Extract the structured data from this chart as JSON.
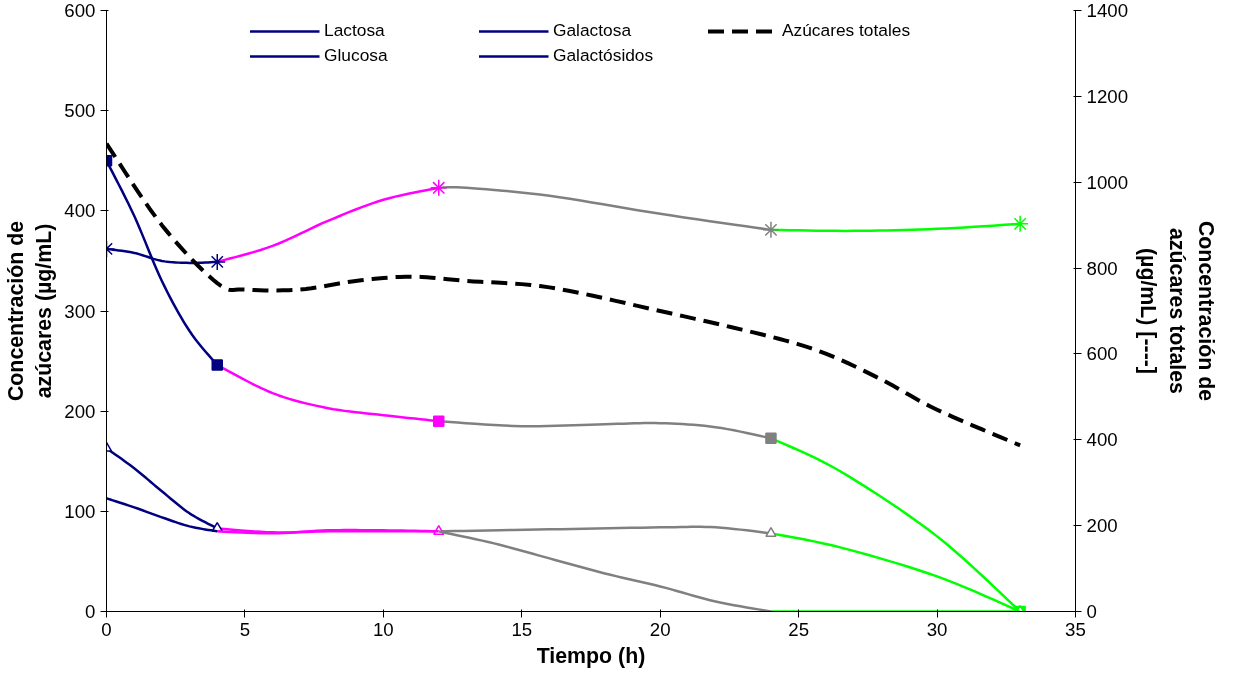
{
  "chart_data": {
    "type": "line",
    "xlabel": "Tiempo (h)",
    "ylabel": "Concentración de\nazúcares (µg/mL)",
    "y2label": "Concentración de\nazúcares totales\n(µg/mL) [----]",
    "series": [
      {
        "name": "Lactosa",
        "color": "#000080",
        "x": [
          0,
          1,
          2,
          3,
          4
        ],
        "values": [
          450,
          395,
          330,
          280,
          246
        ]
      },
      {
        "color": "#ff00ff",
        "x": [
          4,
          6,
          8,
          10,
          12
        ],
        "values": [
          246,
          218,
          203,
          196,
          190
        ]
      },
      {
        "color": "#808080",
        "x": [
          12,
          15,
          18,
          20,
          22,
          24
        ],
        "values": [
          190,
          185,
          187,
          188,
          184,
          173
        ]
      },
      {
        "color": "#00ff00",
        "x": [
          24,
          26.5,
          30,
          33
        ],
        "values": [
          173,
          140,
          75,
          0
        ]
      },
      {
        "type": "scatter",
        "marker": "square",
        "colors": [
          "#000080",
          "#000080",
          "#ff00ff",
          "#808080",
          "#00ff00"
        ],
        "x": [
          0,
          4,
          12,
          24,
          33
        ],
        "values": [
          450,
          246,
          190,
          173,
          0
        ]
      },
      {
        "name": "Glucosa",
        "color": "#000080",
        "x": [
          0,
          1,
          2,
          3,
          4
        ],
        "values": [
          163,
          143,
          120,
          98,
          83
        ]
      },
      {
        "color": "#ff00ff",
        "x": [
          4,
          6,
          8,
          10,
          12
        ],
        "values": [
          83,
          79,
          80,
          80,
          80
        ]
      },
      {
        "color": "#808080",
        "x": [
          12,
          16,
          20,
          22,
          24
        ],
        "values": [
          80,
          82,
          84,
          84,
          78
        ]
      },
      {
        "color": "#00ff00",
        "x": [
          24,
          26.5,
          30,
          33
        ],
        "values": [
          78,
          64,
          35,
          0
        ]
      },
      {
        "type": "scatter",
        "marker": "triangle",
        "colors": [
          "#000080",
          "#000080",
          "#ff00ff",
          "#808080",
          "#00ff00"
        ],
        "x": [
          0,
          4,
          12,
          24,
          33
        ],
        "values": [
          163,
          83,
          80,
          78,
          0
        ]
      },
      {
        "name": "Galactosa",
        "color": "#000080",
        "x": [
          0,
          1,
          2,
          3,
          4
        ],
        "values": [
          113,
          104,
          94,
          85,
          80
        ]
      },
      {
        "color": "#ff00ff",
        "x": [
          4,
          6,
          8,
          10,
          12
        ],
        "values": [
          80,
          78,
          81,
          81,
          80
        ]
      },
      {
        "color": "#808080",
        "x": [
          12,
          14,
          16,
          18,
          20,
          22,
          24
        ],
        "values": [
          80,
          68,
          53,
          38,
          25,
          10,
          0
        ]
      },
      {
        "color": "#00ff00",
        "x": [
          24,
          26.5,
          30,
          33
        ],
        "values": [
          0,
          0,
          0,
          0
        ]
      },
      {
        "name": "Galactósidos",
        "color": "#000080",
        "x": [
          0,
          1,
          2,
          3,
          4
        ],
        "values": [
          362,
          358,
          350,
          348,
          349
        ]
      },
      {
        "color": "#ff00ff",
        "x": [
          4,
          6,
          8,
          10,
          12
        ],
        "values": [
          349,
          365,
          390,
          411,
          423
        ]
      },
      {
        "color": "#808080",
        "x": [
          12,
          13,
          16,
          20,
          24
        ],
        "values": [
          423,
          423,
          415,
          397,
          381
        ]
      },
      {
        "color": "#00ff00",
        "x": [
          24,
          27,
          30,
          33
        ],
        "values": [
          381,
          380,
          382,
          387
        ]
      },
      {
        "type": "scatter",
        "marker": "cross",
        "colors": [
          "#000080",
          "#000080",
          "#ff00ff",
          "#808080",
          "#00ff00"
        ],
        "x": [
          0,
          4,
          12,
          24,
          33
        ],
        "values": [
          362,
          349,
          423,
          381,
          387
        ]
      },
      {
        "name": "Azúcares totales",
        "axis": "y2",
        "line_style": "dashed",
        "color": "#000000",
        "x": [
          0,
          2,
          4,
          5,
          7,
          9,
          11,
          13,
          16,
          20,
          24,
          26,
          28,
          30,
          33
        ],
        "values": [
          1090,
          900,
          765,
          750,
          750,
          770,
          780,
          770,
          755,
          700,
          640,
          600,
          540,
          470,
          387
        ]
      }
    ],
    "xlim": [
      0,
      35
    ],
    "xticks": [
      0,
      5,
      10,
      15,
      20,
      25,
      30,
      35
    ],
    "ylim": [
      0,
      600
    ],
    "yticks": [
      0,
      100,
      200,
      300,
      400,
      500,
      600
    ],
    "y2lim": [
      0,
      1400
    ],
    "y2ticks": [
      0,
      200,
      400,
      600,
      800,
      1000,
      1200,
      1400
    ],
    "legend": "top"
  }
}
